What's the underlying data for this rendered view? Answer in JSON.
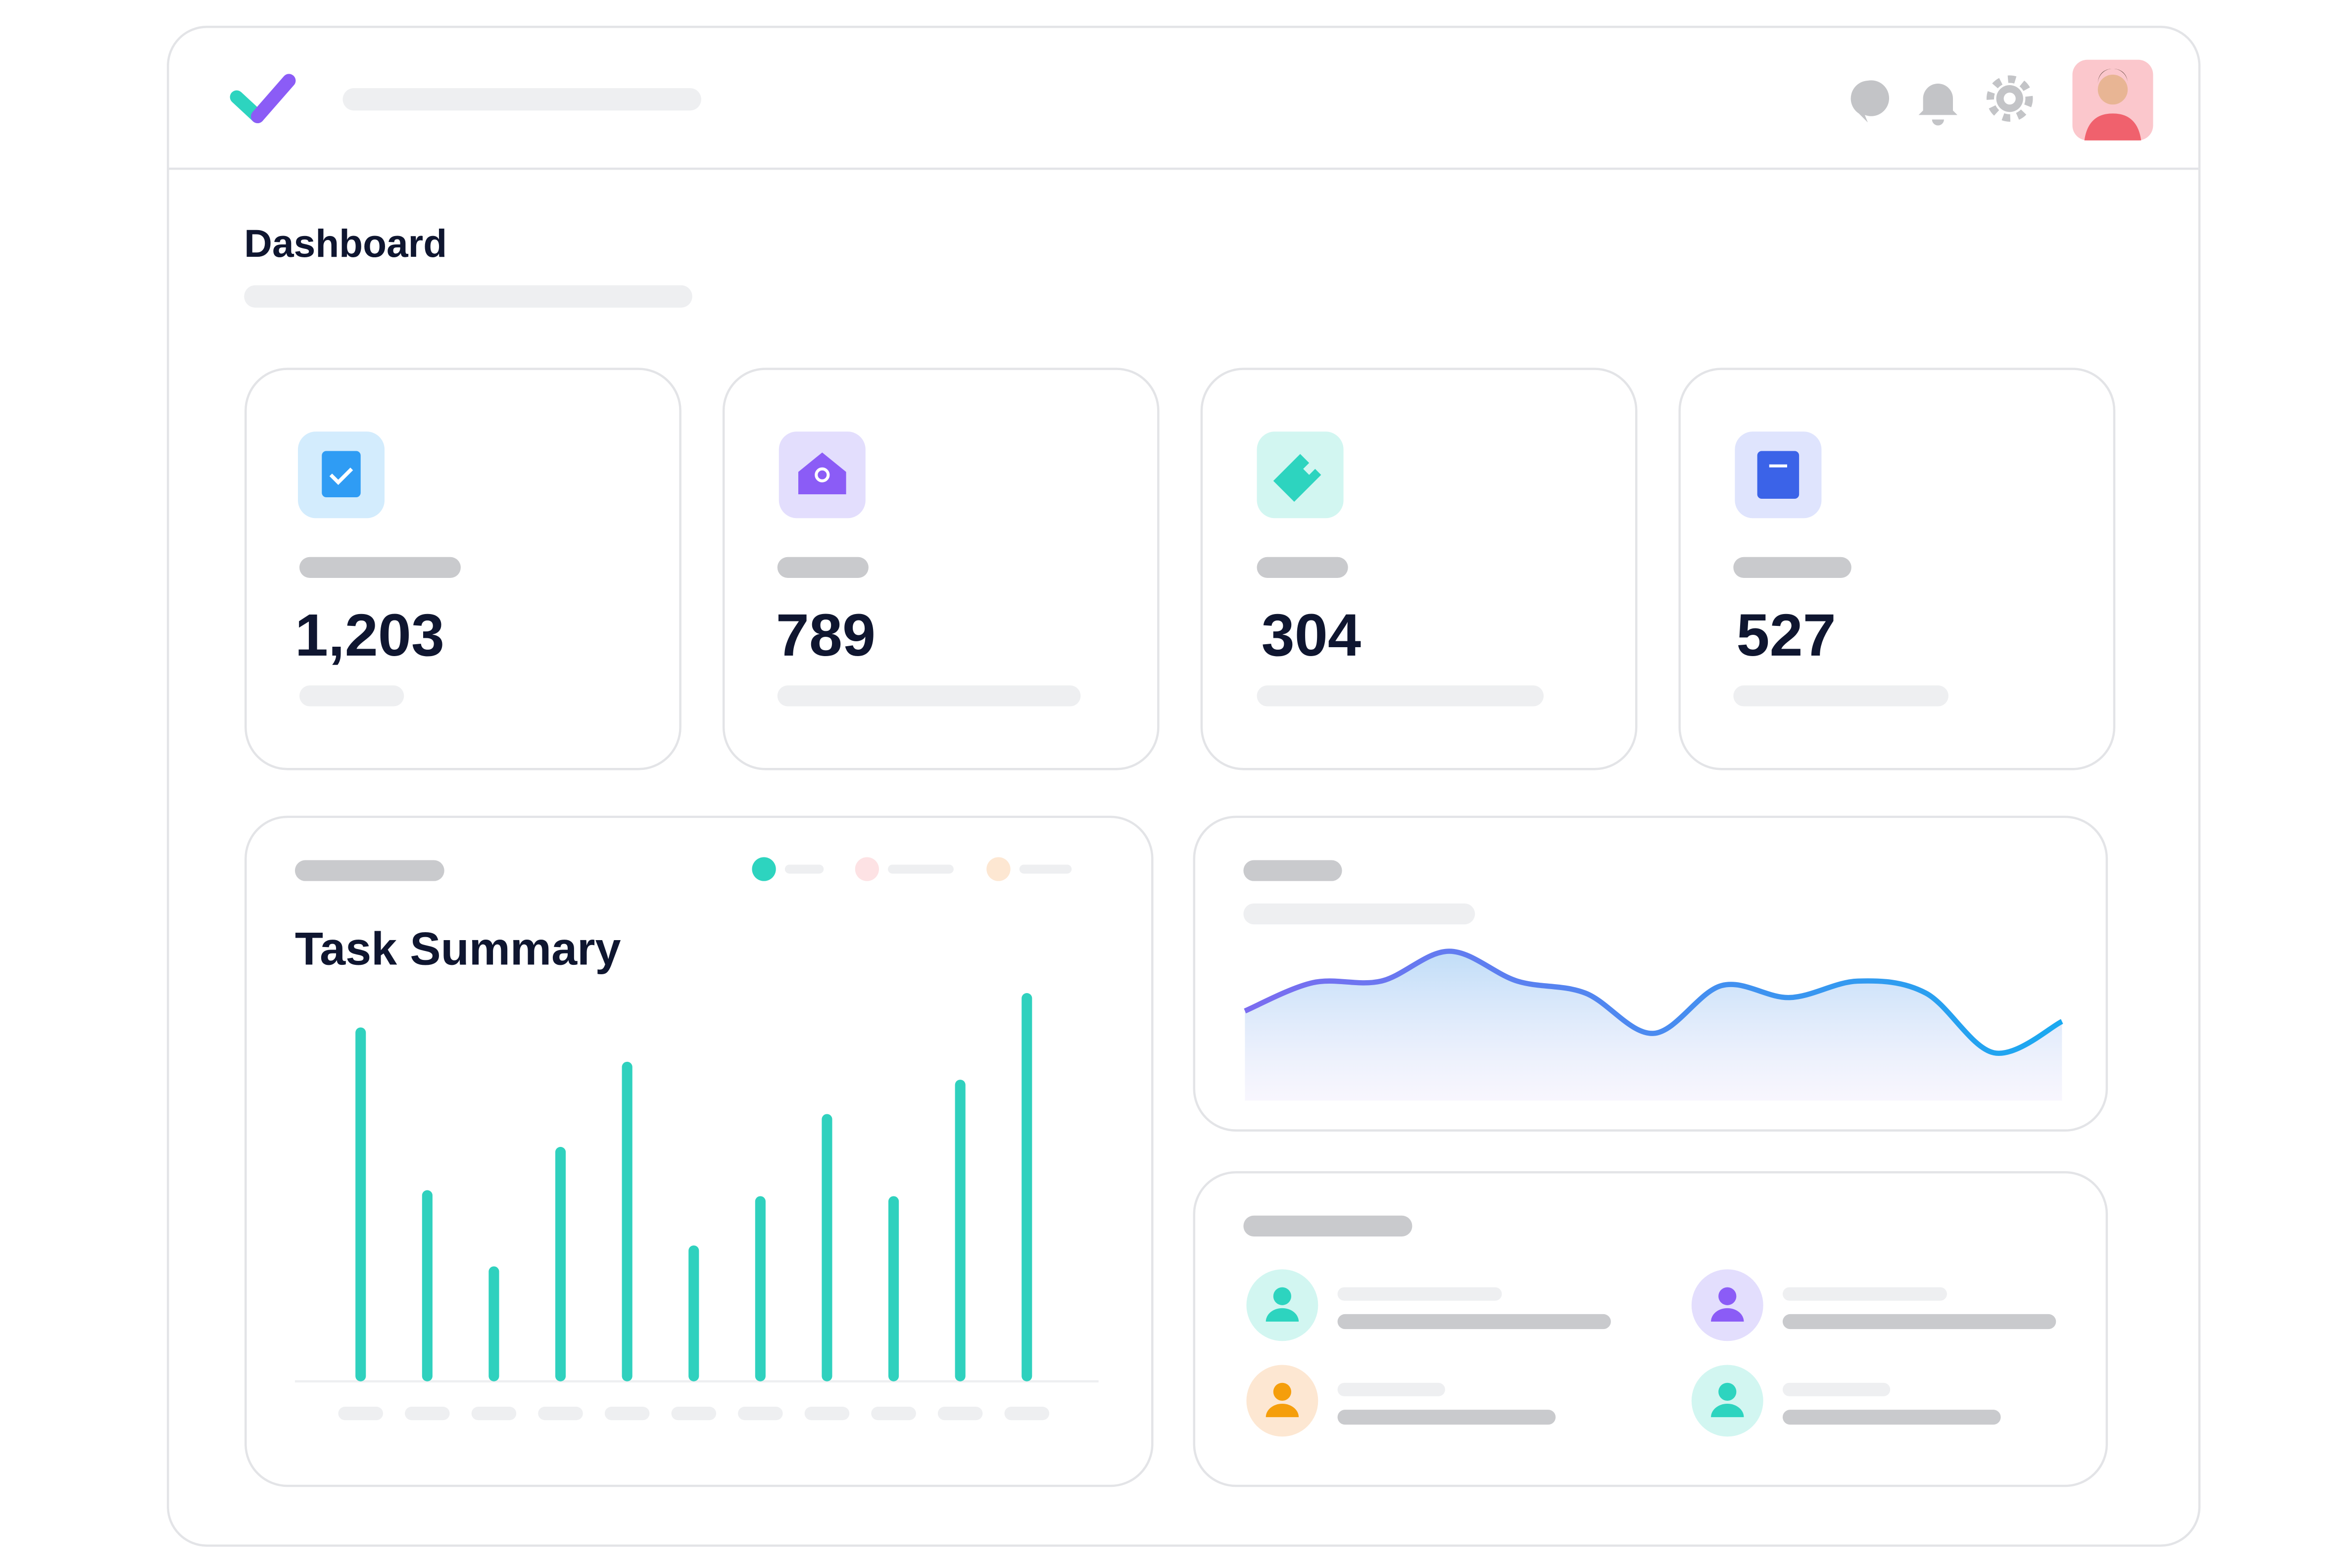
{
  "header": {
    "title": "Dashboard"
  },
  "stats": [
    "1,203",
    "789",
    "304",
    "527"
  ],
  "task_summary": {
    "title": "Task Summary",
    "values": [
      237,
      128,
      77,
      157,
      214,
      91,
      124,
      179,
      124,
      202,
      260
    ]
  },
  "trend": {
    "values": [
      60,
      79,
      80,
      100,
      80,
      72,
      45,
      77,
      69,
      80,
      72,
      32,
      53
    ]
  }
}
